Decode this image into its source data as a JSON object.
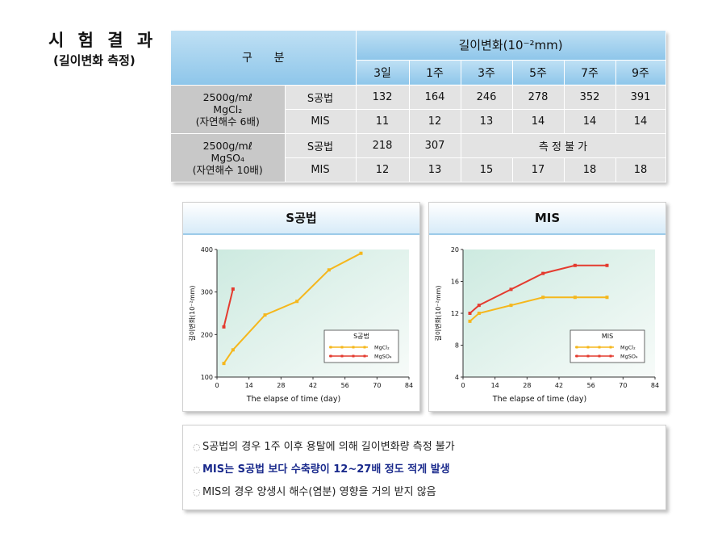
{
  "page": {
    "title": "시 험 결 과",
    "subtitle": "(길이변화 측정)"
  },
  "table": {
    "header_left": "구      분",
    "header_unit": "길이변화(10⁻²mm)",
    "days": [
      "3일",
      "1주",
      "3주",
      "5주",
      "7주",
      "9주"
    ],
    "groups": [
      {
        "label_lines": [
          "2500g/mℓ",
          "MgCl₂",
          "(자연해수 6배)"
        ],
        "rows": [
          {
            "method": "S공법",
            "values": [
              "132",
              "164",
              "246",
              "278",
              "352",
              "391"
            ]
          },
          {
            "method": "MIS",
            "values": [
              "11",
              "12",
              "13",
              "14",
              "14",
              "14"
            ]
          }
        ]
      },
      {
        "label_lines": [
          "2500g/mℓ",
          "MgSO₄",
          "(자연해수 10배)"
        ],
        "rows": [
          {
            "method": "S공법",
            "values": [
              "218",
              "307"
            ],
            "merged_note": "측 정 불 가"
          },
          {
            "method": "MIS",
            "values": [
              "12",
              "13",
              "15",
              "17",
              "18",
              "18"
            ]
          }
        ]
      }
    ]
  },
  "chart_data": [
    {
      "type": "line",
      "title": "S공법",
      "xlabel": "The elapse of time (day)",
      "ylabel": "길이변화(10⁻²mm)",
      "xlim": [
        0,
        84
      ],
      "ylim": [
        100,
        400
      ],
      "xticks": [
        0,
        14,
        28,
        42,
        56,
        70,
        84
      ],
      "yticks": [
        100,
        200,
        300,
        400
      ],
      "legend_title": "S공법",
      "legend_position": "lower-right",
      "series": [
        {
          "name": "MgCl₂",
          "color": "#f5b71c",
          "x": [
            3,
            7,
            21,
            35,
            49,
            63
          ],
          "y": [
            132,
            164,
            246,
            278,
            352,
            391
          ]
        },
        {
          "name": "MgSO₄",
          "color": "#e43b2f",
          "x": [
            3,
            7
          ],
          "y": [
            218,
            307
          ]
        }
      ]
    },
    {
      "type": "line",
      "title": "MIS",
      "xlabel": "The elapse of time (day)",
      "ylabel": "길이변화(10⁻²mm)",
      "xlim": [
        0,
        84
      ],
      "ylim": [
        4,
        20
      ],
      "xticks": [
        0,
        14,
        28,
        42,
        56,
        70,
        84
      ],
      "yticks": [
        4,
        8,
        12,
        16,
        20
      ],
      "legend_title": "MIS",
      "legend_position": "lower-right",
      "series": [
        {
          "name": "MgCl₂",
          "color": "#f5b71c",
          "x": [
            3,
            7,
            21,
            35,
            49,
            63
          ],
          "y": [
            11,
            12,
            13,
            14,
            14,
            14
          ]
        },
        {
          "name": "MgSO₄",
          "color": "#e43b2f",
          "x": [
            3,
            7,
            21,
            35,
            49,
            63
          ],
          "y": [
            12,
            13,
            15,
            17,
            18,
            18
          ]
        }
      ]
    }
  ],
  "notes": [
    {
      "text": "S공법의 경우 1주 이후 용탈에 의해 길이변화량 측정 불가",
      "highlight": false
    },
    {
      "text": "MIS는 S공법 보다 수축량이 12~27배 정도 적게 발생",
      "highlight": true
    },
    {
      "text": "MIS의 경우 양생시 해수(염분) 영향을 거의 받지 않음",
      "highlight": false
    }
  ],
  "bullet_icon": "ring-bullet-icon"
}
